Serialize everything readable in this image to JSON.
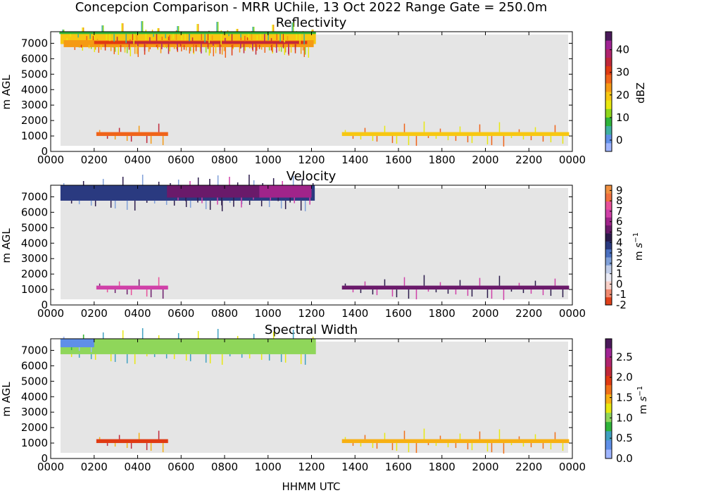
{
  "figure": {
    "suptitle": "Concepcion Comparison - MRR UChile, 13 Oct 2022 Range Gate = 250.0m",
    "xlabel": "HHMM UTC"
  },
  "chart_data": [
    {
      "type": "heatmap",
      "title": "Reflectivity",
      "ylabel": "m AGL",
      "x_ticklabels": [
        "0000",
        "0200",
        "0400",
        "0600",
        "0800",
        "1000",
        "1200",
        "1400",
        "1600",
        "1800",
        "2000",
        "2200",
        "0000"
      ],
      "xlim_hours": [
        0,
        24
      ],
      "y_ticks": [
        0,
        1000,
        2000,
        3000,
        4000,
        5000,
        6000,
        7000
      ],
      "ylim": [
        0,
        7750
      ],
      "background_color": "#e5e5e5",
      "colorbar": {
        "label": "dBZ",
        "ticks": [
          0,
          10,
          20,
          30,
          40
        ],
        "range": [
          -5,
          48
        ],
        "colors": [
          "#9fb5ff",
          "#5f8fe8",
          "#3fb0a0",
          "#2fb43a",
          "#8fd61a",
          "#e8e810",
          "#f7c712",
          "#f59a14",
          "#f0641a",
          "#e03a12",
          "#c0283a",
          "#b0246e",
          "#a02494",
          "#4a1a5a"
        ]
      },
      "regions": [
        {
          "t0": 0.45,
          "t1": 12.2,
          "z0": 6950,
          "z1": 7750,
          "value": 18
        },
        {
          "t0": 0.6,
          "t1": 12.1,
          "z0": 6750,
          "z1": 7200,
          "value": 22
        },
        {
          "t0": 0.9,
          "t1": 11.9,
          "z0": 6900,
          "z1": 7200,
          "value": 25
        },
        {
          "t0": 2.0,
          "t1": 11.8,
          "z0": 6950,
          "z1": 7150,
          "value": 30
        },
        {
          "t0": 3.5,
          "t1": 11.4,
          "z0": 6980,
          "z1": 7120,
          "value": 33
        },
        {
          "t0": 0.4,
          "t1": 12.2,
          "z0": 7600,
          "z1": 7750,
          "value": 10
        },
        {
          "t0": 2.1,
          "t1": 5.4,
          "z0": 1000,
          "z1": 1250,
          "value": 29
        },
        {
          "t0": 13.4,
          "t1": 23.85,
          "z0": 1000,
          "z1": 1250,
          "value": 21
        }
      ]
    },
    {
      "type": "heatmap",
      "title": "Velocity",
      "ylabel": "m AGL",
      "x_ticklabels": [
        "0000",
        "0200",
        "0400",
        "0600",
        "0800",
        "1000",
        "1200",
        "1400",
        "1600",
        "1800",
        "2000",
        "2200",
        "0000"
      ],
      "xlim_hours": [
        0,
        24
      ],
      "y_ticks": [
        0,
        1000,
        2000,
        3000,
        4000,
        5000,
        6000,
        7000
      ],
      "ylim": [
        0,
        7750
      ],
      "background_color": "#e5e5e5",
      "colorbar": {
        "label": "m s^-1",
        "ticks": [
          -2,
          -1,
          0,
          1,
          2,
          3,
          4,
          5,
          6,
          7,
          8,
          9
        ],
        "range": [
          -2,
          9.5
        ],
        "colors": [
          "#e0401a",
          "#f08a70",
          "#f8d0c8",
          "#eaeaf4",
          "#c0cce8",
          "#7f9fd8",
          "#4a70c0",
          "#2a3a80",
          "#2a1a4a",
          "#6a1a6a",
          "#a0248a",
          "#d040a8",
          "#e8509a",
          "#f07040",
          "#f09040"
        ]
      },
      "regions": [
        {
          "t0": 0.45,
          "t1": 12.15,
          "z0": 6750,
          "z1": 7750,
          "value": 3.6
        },
        {
          "t0": 5.35,
          "t1": 9.6,
          "z0": 6950,
          "z1": 7750,
          "value": 5.3
        },
        {
          "t0": 9.6,
          "t1": 12.0,
          "z0": 6950,
          "z1": 7750,
          "value": 5.8
        },
        {
          "t0": 2.1,
          "t1": 5.4,
          "z0": 1000,
          "z1": 1250,
          "value": 6.8
        },
        {
          "t0": 13.4,
          "t1": 23.85,
          "z0": 1000,
          "z1": 1250,
          "value": 5.5
        }
      ]
    },
    {
      "type": "heatmap",
      "title": "Spectral Width",
      "ylabel": "m AGL",
      "x_ticklabels": [
        "0000",
        "0200",
        "0400",
        "0600",
        "0800",
        "1000",
        "1200",
        "1400",
        "1600",
        "1800",
        "2000",
        "2200",
        "0000"
      ],
      "xlim_hours": [
        0,
        24
      ],
      "y_ticks": [
        0,
        1000,
        2000,
        3000,
        4000,
        5000,
        6000,
        7000
      ],
      "ylim": [
        0,
        7750
      ],
      "background_color": "#e5e5e5",
      "colorbar": {
        "label": "m s^-1",
        "ticks": [
          0.0,
          0.5,
          1.0,
          1.5,
          2.0,
          2.5
        ],
        "range": [
          0,
          2.95
        ],
        "colors": [
          "#9fb5ff",
          "#5f8fe8",
          "#3fa0c0",
          "#2fb43a",
          "#8fd65a",
          "#e8e810",
          "#f7b012",
          "#f07018",
          "#e03a12",
          "#c0283a",
          "#b0246e",
          "#a02494",
          "#4a1a5a"
        ]
      },
      "regions": [
        {
          "t0": 0.45,
          "t1": 12.2,
          "z0": 6750,
          "z1": 7750,
          "value": 0.95
        },
        {
          "t0": 0.45,
          "t1": 2.0,
          "z0": 7200,
          "z1": 7750,
          "value": 0.45
        },
        {
          "t0": 2.1,
          "t1": 5.4,
          "z0": 1000,
          "z1": 1250,
          "value": 1.85
        },
        {
          "t0": 13.4,
          "t1": 23.85,
          "z0": 1000,
          "z1": 1250,
          "value": 1.5
        }
      ]
    }
  ]
}
